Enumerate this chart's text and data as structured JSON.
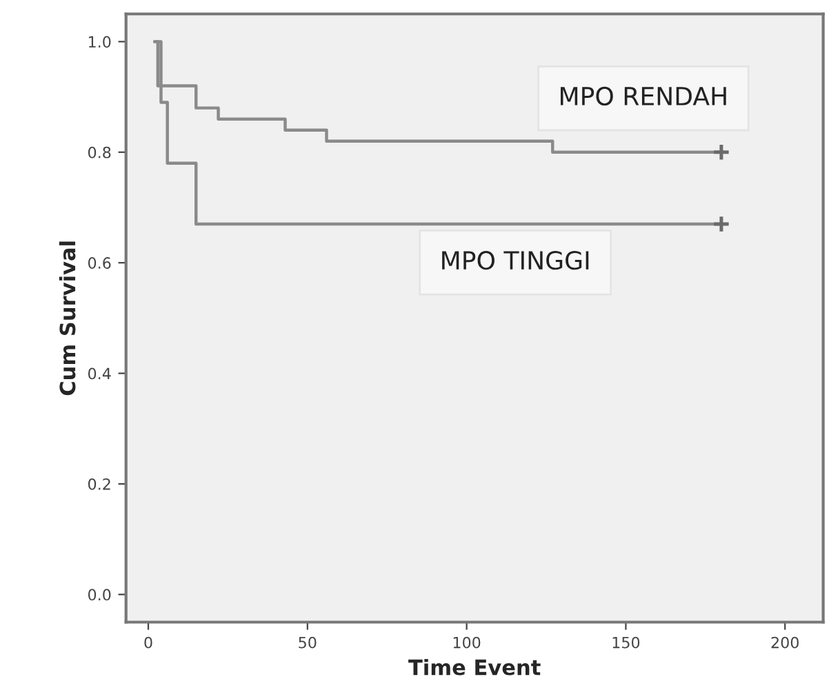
{
  "chart_data": {
    "type": "step",
    "xlabel": "Time Event",
    "ylabel": "Cum Survival",
    "xlim": [
      -7,
      212
    ],
    "ylim": [
      -0.05,
      1.05
    ],
    "xticks": [
      0,
      50,
      100,
      150,
      200
    ],
    "yticks": [
      {
        "value": 0,
        "label": "0.0"
      },
      {
        "value": 0.2,
        "label": "0.2"
      },
      {
        "value": 0.4,
        "label": "0.4"
      },
      {
        "value": 0.6,
        "label": "0.6"
      },
      {
        "value": 0.8,
        "label": "0.8"
      },
      {
        "value": 1,
        "label": "1.0"
      }
    ],
    "grid": false,
    "legend": false,
    "marker": "none",
    "line_style": "solid",
    "series": [
      {
        "name": "MPO RENDAH",
        "color": "#8a8a8a",
        "x": [
          2,
          3,
          15,
          22,
          43,
          56,
          127,
          180
        ],
        "values": [
          1.0,
          0.92,
          0.88,
          0.86,
          0.84,
          0.82,
          0.8,
          0.8
        ]
      },
      {
        "name": "MPO TINGGI",
        "color": "#8a8a8a",
        "x": [
          2,
          4,
          6,
          15,
          180
        ],
        "values": [
          1.0,
          0.89,
          0.78,
          0.67,
          0.67
        ]
      },
      {
        "type": "scatter",
        "marker": "cross",
        "color": "#6a6a6a",
        "x": [
          180,
          180
        ],
        "values": [
          0.8,
          0.67
        ]
      }
    ]
  }
}
